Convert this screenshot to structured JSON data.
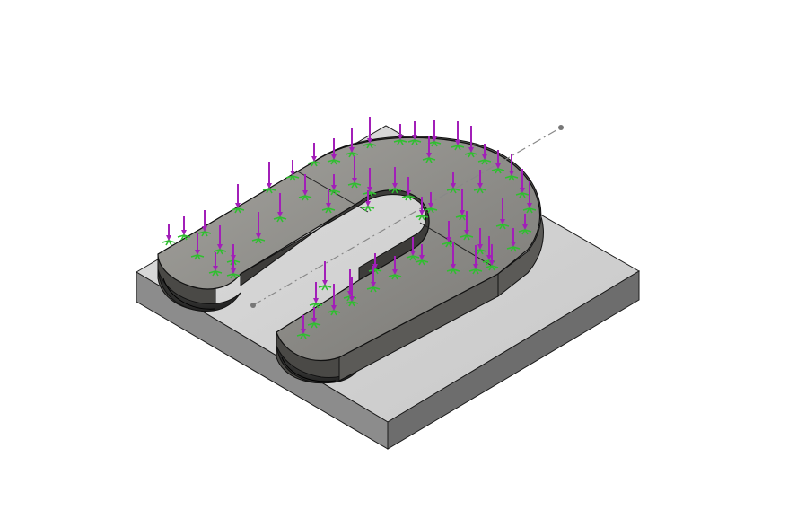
{
  "viewport": {
    "background": "#ffffff"
  },
  "model": {
    "base_plate": {
      "top_color": "#d4d4d4",
      "front_color": "#8a8a8a",
      "side_color": "#707070",
      "edge_color": "#1a1a1a"
    },
    "horseshoe": {
      "top_color": "#8b8a86",
      "side_color": "#5e5d5a",
      "dark_color": "#2a2a2a",
      "edge_color": "#111111"
    },
    "axis_line_color": "#777777",
    "arrow_icon": "force-arrow-icon",
    "fixture_icon": "fixture-symbol-icon",
    "arrow_color": "#a21fb8",
    "fixture_color": "#2fbf2f"
  }
}
